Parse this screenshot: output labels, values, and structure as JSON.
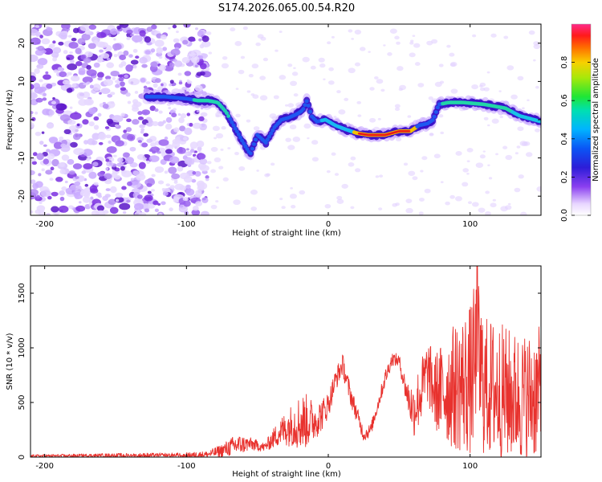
{
  "title": "S174.2026.065.00.54.R20",
  "chart_data": [
    {
      "type": "heatmap",
      "name": "spectrogram",
      "xlabel": "Height of straight line (km)",
      "ylabel": "Frequency (Hz)",
      "xlim": [
        -210,
        150
      ],
      "ylim": [
        -25,
        25
      ],
      "xticks": [
        -200,
        -100,
        0,
        100
      ],
      "yticks": [
        -20,
        -10,
        0,
        10,
        20
      ],
      "ridge": {
        "x": [
          -128,
          -115,
          -100,
          -92,
          -85,
          -78,
          -72,
          -66,
          -60,
          -55,
          -50,
          -44,
          -38,
          -33,
          -28,
          -22,
          -18,
          -15,
          -12,
          -8,
          -2,
          5,
          12,
          20,
          28,
          40,
          50,
          58,
          64,
          70,
          74,
          78,
          85,
          95,
          110,
          125,
          135,
          145,
          150
        ],
        "y": [
          6,
          6,
          5.5,
          5,
          5,
          4.5,
          2,
          -2,
          -6,
          -9,
          -4,
          -6,
          -2,
          0,
          0.5,
          1.5,
          2.5,
          5,
          1,
          -0.5,
          0,
          -1.5,
          -2.5,
          -3.5,
          -4,
          -4,
          -3,
          -3,
          -1.5,
          -1,
          0,
          4,
          4.5,
          4.5,
          4,
          3,
          1,
          0,
          -0.5
        ]
      },
      "colorbar": {
        "label": "Normalized spectral amplitude",
        "range": [
          0,
          1
        ],
        "ticks": [
          "0.0",
          "0.2",
          "0.4",
          "0.6",
          "0.8"
        ],
        "tick_values": [
          0.0,
          0.2,
          0.4,
          0.6,
          0.8
        ]
      }
    },
    {
      "type": "line",
      "name": "snr",
      "xlabel": "Height of straight line (km)",
      "ylabel": "SNR (10 * v/v)",
      "xlim": [
        -210,
        150
      ],
      "ylim": [
        0,
        1750
      ],
      "xticks": [
        -200,
        -100,
        0,
        100
      ],
      "yticks": [
        0,
        500,
        1000,
        1500
      ],
      "color": "#e8322e",
      "envelope": {
        "x": [
          -210,
          -150,
          -100,
          -85,
          -75,
          -65,
          -55,
          -45,
          -35,
          -30,
          -25,
          -20,
          -15,
          -10,
          -5,
          0,
          5,
          10,
          15,
          20,
          25,
          30,
          35,
          40,
          45,
          50,
          55,
          60,
          65,
          70,
          75,
          80,
          90,
          100,
          105,
          110,
          120,
          130,
          140,
          150
        ],
        "mean": [
          10,
          15,
          15,
          25,
          60,
          110,
          120,
          90,
          220,
          260,
          300,
          320,
          330,
          330,
          380,
          480,
          700,
          850,
          600,
          400,
          200,
          250,
          480,
          720,
          900,
          880,
          600,
          420,
          580,
          780,
          600,
          600,
          650,
          700,
          900,
          650,
          600,
          560,
          540,
          600
        ],
        "spread": [
          12,
          20,
          25,
          30,
          60,
          100,
          60,
          40,
          120,
          160,
          200,
          260,
          250,
          180,
          150,
          120,
          100,
          100,
          100,
          80,
          60,
          60,
          60,
          80,
          60,
          60,
          120,
          250,
          300,
          300,
          350,
          450,
          600,
          700,
          800,
          650,
          650,
          600,
          600,
          600
        ]
      },
      "peak": {
        "x": 105,
        "y": 1750
      }
    }
  ]
}
